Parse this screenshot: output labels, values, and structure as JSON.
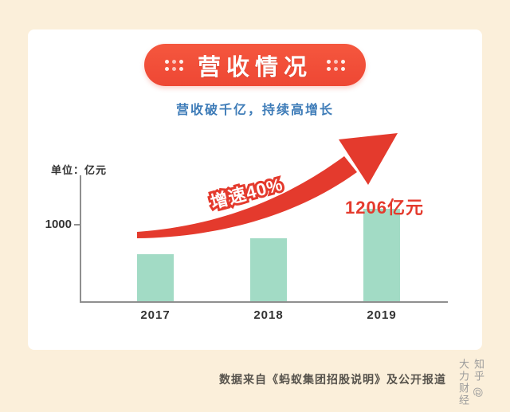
{
  "banner": {
    "title": "营收情况"
  },
  "subtitle": "营收破千亿，持续高增长",
  "chart_data": {
    "type": "bar",
    "title": "营收情况",
    "subtitle": "营收破千亿，持续高增长",
    "unit_label": "单位：亿元",
    "categories": [
      "2017",
      "2018",
      "2019"
    ],
    "values": [
      610,
      820,
      1206
    ],
    "y_ticks": [
      {
        "value": 1000,
        "label": "1000"
      }
    ],
    "ylim": [
      0,
      1400
    ],
    "grid": false,
    "legend": false,
    "annotations": [
      {
        "type": "arrow-label",
        "text": "增速40%"
      },
      {
        "type": "value-label",
        "text": "1206亿元",
        "category": "2019"
      }
    ],
    "growth_label": "增速40%",
    "value_label": "1206亿元",
    "bar_color": "#A2DBC5",
    "arrow_color": "#E43A2D",
    "accent_color": "#E43A2D",
    "banner_color": "#F1503B",
    "subtitle_color": "#3E7CB8",
    "background_color": "#FBEFDA"
  },
  "footer": {
    "source": "数据来自《蚂蚁集团招股说明》及公开报道"
  },
  "watermark": {
    "text": "知乎 @大力财经"
  }
}
